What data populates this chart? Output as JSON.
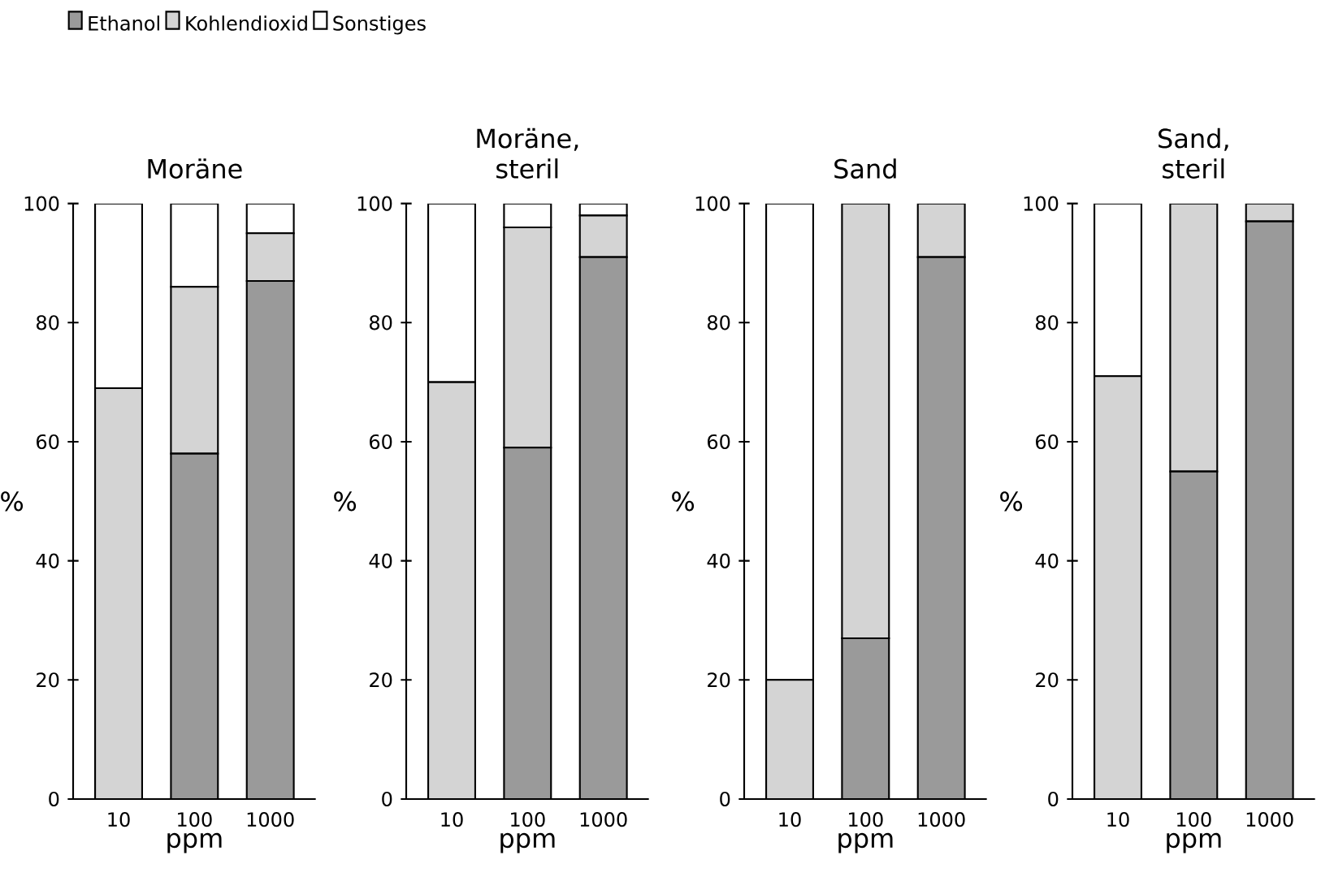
{
  "chart_data": [
    {
      "type": "bar",
      "title": "Moräne",
      "stacked": true,
      "categories": [
        "10",
        "100",
        "1000"
      ],
      "xlabel": "ppm",
      "ylabel": "%",
      "ylim": [
        0,
        100
      ],
      "yticks": [
        0,
        20,
        40,
        60,
        80,
        100
      ],
      "legend": "top",
      "series": [
        {
          "name": "Ethanol",
          "color": "#9a9a9a",
          "values": [
            0,
            58,
            87
          ]
        },
        {
          "name": "Kohlendioxid",
          "color": "#d4d4d4",
          "values": [
            69,
            28,
            8
          ]
        },
        {
          "name": "Sonstiges",
          "color": "#ffffff",
          "values": [
            31,
            14,
            5
          ]
        }
      ]
    },
    {
      "type": "bar",
      "title": "Moräne, steril",
      "stacked": true,
      "categories": [
        "10",
        "100",
        "1000"
      ],
      "xlabel": "ppm",
      "ylabel": "%",
      "ylim": [
        0,
        100
      ],
      "yticks": [
        0,
        20,
        40,
        60,
        80,
        100
      ],
      "series": [
        {
          "color": "#9a9a9a",
          "values": [
            0,
            59,
            91
          ]
        },
        {
          "color": "#d4d4d4",
          "values": [
            70,
            37,
            7
          ]
        },
        {
          "color": "#ffffff",
          "values": [
            30,
            4,
            2
          ]
        }
      ]
    },
    {
      "type": "bar",
      "title": "Sand",
      "stacked": true,
      "categories": [
        "10",
        "100",
        "1000"
      ],
      "xlabel": "ppm",
      "ylabel": "%",
      "ylim": [
        0,
        100
      ],
      "yticks": [
        0,
        20,
        40,
        60,
        80,
        100
      ],
      "series": [
        {
          "color": "#9a9a9a",
          "values": [
            0,
            27,
            91
          ]
        },
        {
          "color": "#d4d4d4",
          "values": [
            20,
            73,
            9
          ]
        },
        {
          "color": "#ffffff",
          "values": [
            80,
            0,
            0
          ]
        }
      ]
    },
    {
      "type": "bar",
      "title": "Sand, steril",
      "stacked": true,
      "categories": [
        "10",
        "100",
        "1000"
      ],
      "xlabel": "ppm",
      "ylabel": "%",
      "ylim": [
        0,
        100
      ],
      "yticks": [
        0,
        20,
        40,
        60,
        80,
        100
      ],
      "series": [
        {
          "color": "#9a9a9a",
          "values": [
            0,
            55,
            97
          ]
        },
        {
          "color": "#d4d4d4",
          "values": [
            71,
            45,
            3
          ]
        },
        {
          "color": "#ffffff",
          "values": [
            29,
            0,
            0
          ]
        }
      ]
    }
  ]
}
